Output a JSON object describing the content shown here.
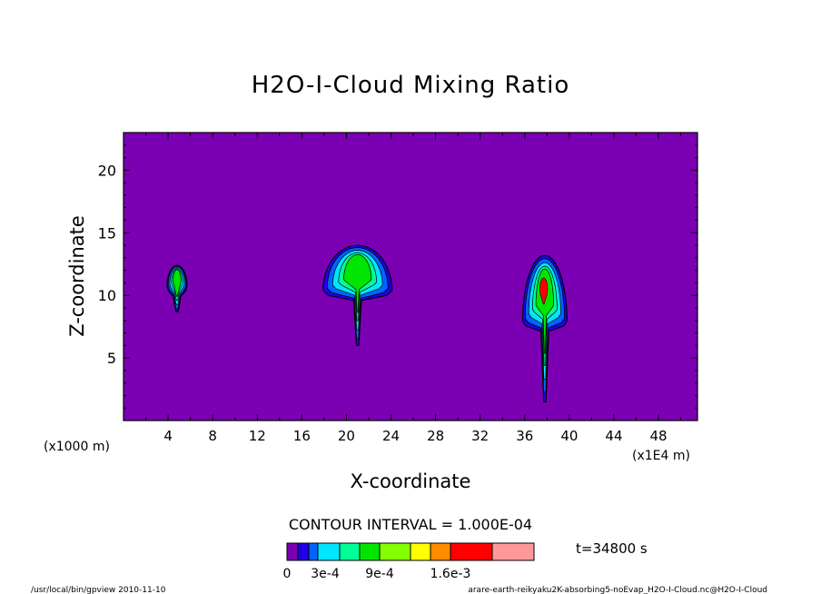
{
  "chart_data": {
    "type": "heatmap",
    "title": "H2O-I-Cloud Mixing Ratio",
    "xlabel": "X-coordinate",
    "ylabel": "Z-coordinate",
    "x_unit_left": "(x1000 m)",
    "x_unit_right": "(x1E4 m)",
    "xlim": [
      0,
      51.5
    ],
    "ylim": [
      0,
      23
    ],
    "x_ticks": [
      4,
      8,
      12,
      16,
      20,
      24,
      28,
      32,
      36,
      40,
      44,
      48
    ],
    "x_tick_labels": [
      "4",
      "8",
      "12",
      "16",
      "20",
      "24",
      "28",
      "32",
      "36",
      "40",
      "44",
      "48"
    ],
    "y_ticks": [
      5,
      10,
      15,
      20
    ],
    "y_tick_labels": [
      "5",
      "10",
      "15",
      "20"
    ],
    "background_color": "#7b00b4",
    "contour_interval_text": "CONTOUR INTERVAL = 1.000E-04",
    "time_text": "t=34800 s",
    "colorbar": {
      "colors": [
        "#7b00b4",
        "#1e00e6",
        "#0064ff",
        "#00e6ff",
        "#00ff96",
        "#00e600",
        "#82ff00",
        "#ffff00",
        "#ff8c00",
        "#ff0000",
        "#ff9999"
      ],
      "tick_labels": [
        "0",
        "3e-4",
        "9e-4",
        "1.6e-3"
      ]
    },
    "clouds": [
      {
        "x": 4.8,
        "top": 12.4,
        "bottom": 8.7,
        "halfwidth": 0.9
      },
      {
        "x": 21.0,
        "top": 14.0,
        "bottom": 6.0,
        "halfwidth": 3.1
      },
      {
        "x": 37.8,
        "top": 13.2,
        "bottom": 1.5,
        "halfwidth": 2.0
      }
    ],
    "footer_left": "/usr/local/bin/gpview  2010-11-10",
    "footer_right": "arare-earth-reikyaku2K-absorbing5-noEvap_H2O-I-Cloud.nc@H2O-I-Cloud"
  }
}
